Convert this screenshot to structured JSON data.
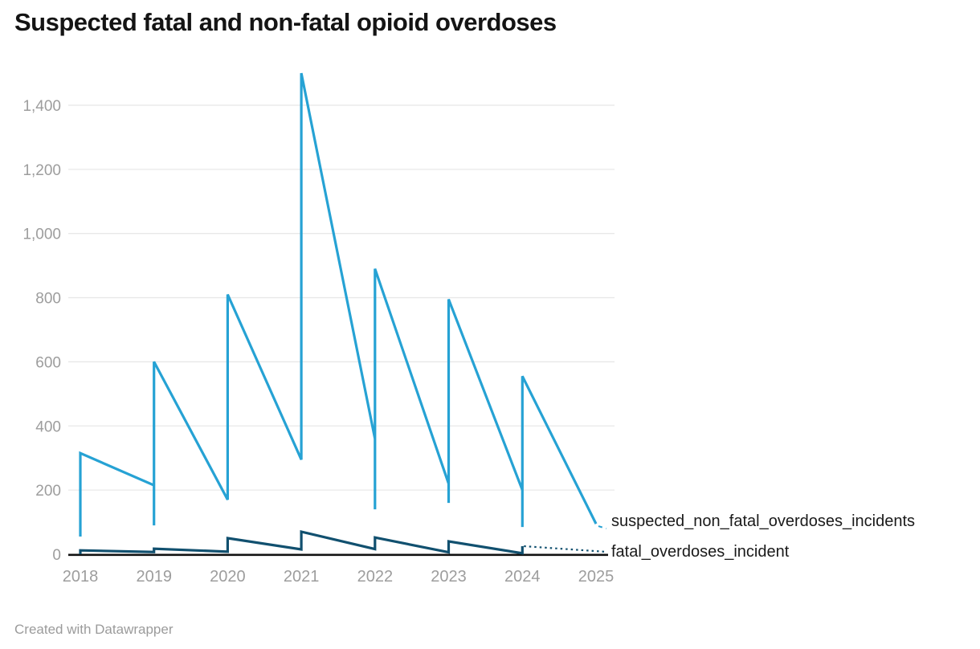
{
  "header": {
    "title": "Suspected fatal and non-fatal opioid overdoses"
  },
  "footer": {
    "credit": "Created with Datawrapper"
  },
  "chart_data": {
    "type": "line",
    "title": "Suspected fatal and non-fatal opioid overdoses",
    "xlabel": "",
    "ylabel": "",
    "x_ticks": [
      2018,
      2019,
      2020,
      2021,
      2022,
      2023,
      2024,
      2025
    ],
    "y_ticks": [
      0,
      200,
      400,
      600,
      800,
      1000,
      1200,
      1400
    ],
    "y_tick_labels": [
      "0",
      "200",
      "400",
      "600",
      "800",
      "1,000",
      "1,200",
      "1,400"
    ],
    "xlim": [
      2017.8,
      2025.3
    ],
    "ylim": [
      0,
      1500
    ],
    "grid": "horizontal",
    "legend_position": "right-of-line-ends",
    "colors": {
      "non_fatal_line": "#26a2d4",
      "fatal_line": "#11506f",
      "gridline": "#e8e8e8",
      "axis_line": "#121212",
      "tick_label": "#9d9d9d",
      "title_text": "#141414",
      "label_text": "#1a1a1a",
      "credit_text": "#9b9b9b"
    },
    "series": [
      {
        "name": "suspected_non_fatal_overdoses_incidents",
        "color": "#26a2d4",
        "points": [
          [
            2018,
            55
          ],
          [
            2018,
            315
          ],
          [
            2019,
            215
          ],
          [
            2019,
            90
          ],
          [
            2019,
            600
          ],
          [
            2020,
            170
          ],
          [
            2020,
            810
          ],
          [
            2021,
            295
          ],
          [
            2021,
            1500
          ],
          [
            2022,
            360
          ],
          [
            2022,
            140
          ],
          [
            2022,
            890
          ],
          [
            2023,
            220
          ],
          [
            2023,
            160
          ],
          [
            2023,
            795
          ],
          [
            2024,
            200
          ],
          [
            2024,
            85
          ],
          [
            2024,
            555
          ],
          [
            2025,
            95
          ]
        ]
      },
      {
        "name": "fatal_overdoses_incident",
        "color": "#11506f",
        "points": [
          [
            2018,
            0
          ],
          [
            2018,
            12
          ],
          [
            2019,
            7
          ],
          [
            2019,
            17
          ],
          [
            2020,
            8
          ],
          [
            2020,
            50
          ],
          [
            2021,
            15
          ],
          [
            2021,
            70
          ],
          [
            2022,
            16
          ],
          [
            2022,
            52
          ],
          [
            2023,
            6
          ],
          [
            2023,
            40
          ],
          [
            2024,
            3
          ],
          [
            2024,
            25
          ]
        ]
      }
    ]
  }
}
